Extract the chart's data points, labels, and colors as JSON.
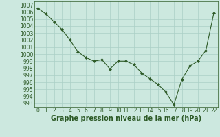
{
  "x": [
    0,
    1,
    2,
    3,
    4,
    5,
    6,
    7,
    8,
    9,
    10,
    11,
    12,
    13,
    14,
    15,
    16,
    17,
    18,
    19,
    20,
    21,
    22
  ],
  "y": [
    1006.5,
    1005.7,
    1004.6,
    1003.5,
    1002.0,
    1000.3,
    999.5,
    999.0,
    999.2,
    997.9,
    999.0,
    999.0,
    998.5,
    997.3,
    996.5,
    995.7,
    994.6,
    992.8,
    996.4,
    998.3,
    999.0,
    1000.5,
    1005.8
  ],
  "line_color": "#2d5a27",
  "marker": "D",
  "marker_size": 2.0,
  "bg_color": "#cce8df",
  "grid_color": "#aacfc6",
  "xlabel": "Graphe pression niveau de la mer (hPa)",
  "xlabel_fontsize": 7.0,
  "ylabel_ticks": [
    993,
    994,
    995,
    996,
    997,
    998,
    999,
    1000,
    1001,
    1002,
    1003,
    1004,
    1005,
    1006,
    1007
  ],
  "ylim": [
    992.5,
    1007.5
  ],
  "xlim": [
    -0.5,
    22.5
  ],
  "xticks": [
    0,
    1,
    2,
    3,
    4,
    5,
    6,
    7,
    8,
    9,
    10,
    11,
    12,
    13,
    14,
    15,
    16,
    17,
    18,
    19,
    20,
    21,
    22
  ],
  "tick_fontsize": 5.5
}
